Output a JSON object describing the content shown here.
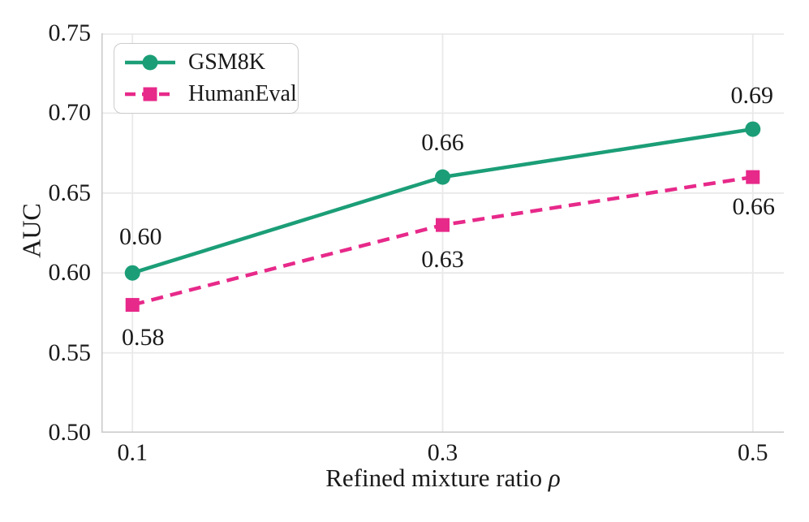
{
  "figure": {
    "background": "#ffffff",
    "text_color": "#1a1a1a",
    "grid_color": "#e9e9e9",
    "spine_color": "#c9c9c9"
  },
  "chart_data": {
    "type": "line",
    "title": "",
    "xlabel": "Refined mixture ratio ρ",
    "xlabel_main": "Refined mixture ratio ",
    "xlabel_symbol": "ρ",
    "ylabel": "AUC",
    "x": [
      0.1,
      0.3,
      0.5
    ],
    "xlim": [
      0.08,
      0.52
    ],
    "ylim": [
      0.5,
      0.75
    ],
    "xticks": [
      0.1,
      0.3,
      0.5
    ],
    "xtick_labels": [
      "0.1",
      "0.3",
      "0.5"
    ],
    "yticks": [
      0.5,
      0.55,
      0.6,
      0.65,
      0.7,
      0.75
    ],
    "ytick_labels": [
      "0.50",
      "0.55",
      "0.60",
      "0.65",
      "0.70",
      "0.75"
    ],
    "grid": true,
    "legend_position": "upper-left",
    "series": [
      {
        "name": "GSM8K",
        "color": "#1b9e77",
        "line_style": "solid",
        "marker": "circle",
        "values": [
          0.6,
          0.66,
          0.69
        ],
        "point_labels": [
          "0.60",
          "0.66",
          "0.69"
        ],
        "label_offsets": [
          [
            10,
            -44
          ],
          [
            0,
            -42
          ],
          [
            -1,
            -41
          ]
        ]
      },
      {
        "name": "HumanEval",
        "color": "#e7298a",
        "line_style": "dashed",
        "marker": "square",
        "values": [
          0.58,
          0.63,
          0.66
        ],
        "point_labels": [
          "0.58",
          "0.63",
          "0.66"
        ],
        "label_offsets": [
          [
            13,
            40
          ],
          [
            0,
            43
          ],
          [
            1,
            37
          ]
        ]
      }
    ]
  }
}
